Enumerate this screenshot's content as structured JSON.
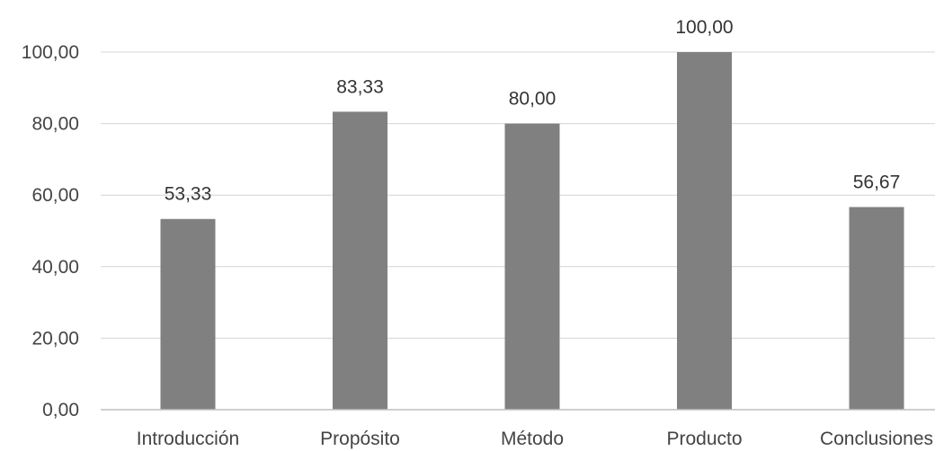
{
  "chart_data": {
    "type": "bar",
    "title": "",
    "xlabel": "",
    "ylabel": "",
    "categories": [
      "Introducción",
      "Propósito",
      "Método",
      "Producto",
      "Conclusiones"
    ],
    "values": [
      53.33,
      83.33,
      80.0,
      100.0,
      56.67
    ],
    "value_labels": [
      "53,33",
      "83,33",
      "80,00",
      "100,00",
      "56,67"
    ],
    "ylim": [
      0,
      100
    ],
    "y_ticks": [
      0,
      20,
      40,
      60,
      80,
      100
    ],
    "y_tick_labels": [
      "0,00",
      "20,00",
      "40,00",
      "60,00",
      "80,00",
      "100,00"
    ],
    "grid": true,
    "legend": "none",
    "bar_color": "#808080",
    "gridline_color": "#d4d4d4",
    "axis_color": "#bfbfbf"
  }
}
